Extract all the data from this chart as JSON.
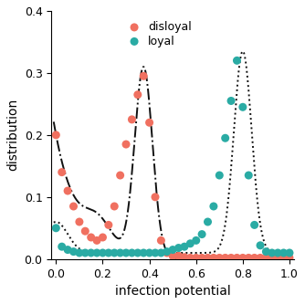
{
  "disloyal_x": [
    0.0,
    0.025,
    0.05,
    0.075,
    0.1,
    0.125,
    0.15,
    0.175,
    0.2,
    0.225,
    0.25,
    0.275,
    0.3,
    0.325,
    0.35,
    0.375,
    0.4,
    0.425,
    0.45,
    0.475,
    0.5,
    0.525,
    0.55,
    0.575,
    0.6,
    0.625,
    0.65,
    0.675,
    0.7,
    0.725,
    0.75,
    0.775,
    0.8,
    0.825,
    0.85,
    0.875,
    0.9,
    0.925,
    0.95,
    0.975,
    1.0
  ],
  "disloyal_y": [
    0.2,
    0.14,
    0.11,
    0.085,
    0.06,
    0.045,
    0.035,
    0.03,
    0.035,
    0.055,
    0.085,
    0.135,
    0.185,
    0.225,
    0.265,
    0.295,
    0.22,
    0.1,
    0.03,
    0.01,
    0.005,
    0.005,
    0.003,
    0.002,
    0.002,
    0.002,
    0.002,
    0.002,
    0.002,
    0.002,
    0.002,
    0.002,
    0.002,
    0.002,
    0.002,
    0.002,
    0.002,
    0.002,
    0.002,
    0.002,
    0.002
  ],
  "loyal_x": [
    0.0,
    0.025,
    0.05,
    0.075,
    0.1,
    0.125,
    0.15,
    0.175,
    0.2,
    0.225,
    0.25,
    0.275,
    0.3,
    0.325,
    0.35,
    0.375,
    0.4,
    0.425,
    0.45,
    0.475,
    0.5,
    0.525,
    0.55,
    0.575,
    0.6,
    0.625,
    0.65,
    0.675,
    0.7,
    0.725,
    0.75,
    0.775,
    0.8,
    0.825,
    0.85,
    0.875,
    0.9,
    0.925,
    0.95,
    0.975,
    1.0
  ],
  "loyal_y": [
    0.05,
    0.02,
    0.015,
    0.012,
    0.01,
    0.01,
    0.01,
    0.01,
    0.01,
    0.01,
    0.01,
    0.01,
    0.01,
    0.01,
    0.01,
    0.01,
    0.01,
    0.01,
    0.01,
    0.012,
    0.015,
    0.018,
    0.02,
    0.025,
    0.03,
    0.04,
    0.06,
    0.085,
    0.135,
    0.195,
    0.255,
    0.32,
    0.245,
    0.135,
    0.055,
    0.022,
    0.012,
    0.01,
    0.01,
    0.01,
    0.01
  ],
  "disloyal_color": "#F07060",
  "loyal_color": "#2AABA4",
  "curve_color": "#111111",
  "xlabel": "infection potential",
  "ylabel": "distribution",
  "xlim": [
    -0.02,
    1.02
  ],
  "ylim": [
    0,
    0.4
  ],
  "yticks": [
    0.0,
    0.1,
    0.2,
    0.3,
    0.4
  ],
  "xticks": [
    0,
    0.2,
    0.4,
    0.6,
    0.8,
    1.0
  ],
  "marker_size": 42
}
